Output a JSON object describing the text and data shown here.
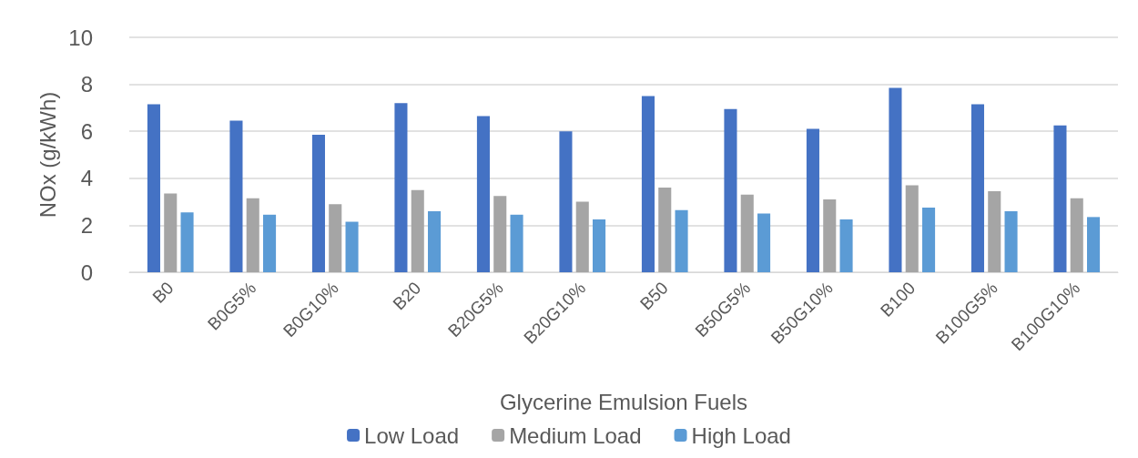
{
  "chart_data": {
    "type": "bar",
    "xlabel": "Glycerine Emulsion Fuels",
    "ylabel": "NOx (g/kWh)",
    "categories": [
      "B0",
      "B0G5%",
      "B0G10%",
      "B20",
      "B20G5%",
      "B20G10%",
      "B50",
      "B50G5%",
      "B50G10%",
      "B100",
      "B100G5%",
      "B100G10%"
    ],
    "series": [
      {
        "name": "Low Load",
        "color": "#4472c4",
        "values": [
          7.15,
          6.45,
          5.85,
          7.2,
          6.65,
          6.0,
          7.5,
          6.95,
          6.1,
          7.85,
          7.15,
          6.25
        ]
      },
      {
        "name": "Medium Load",
        "color": "#a5a5a5",
        "values": [
          3.35,
          3.15,
          2.9,
          3.5,
          3.25,
          3.0,
          3.6,
          3.3,
          3.1,
          3.7,
          3.45,
          3.15
        ]
      },
      {
        "name": "High Load",
        "color": "#5b9bd5",
        "values": [
          2.55,
          2.45,
          2.15,
          2.6,
          2.45,
          2.25,
          2.65,
          2.5,
          2.25,
          2.75,
          2.6,
          2.35
        ]
      }
    ],
    "ylim": [
      0,
      10
    ],
    "yticks": [
      0,
      2,
      4,
      6,
      8,
      10
    ],
    "grid": "y",
    "legend": "bottom"
  }
}
